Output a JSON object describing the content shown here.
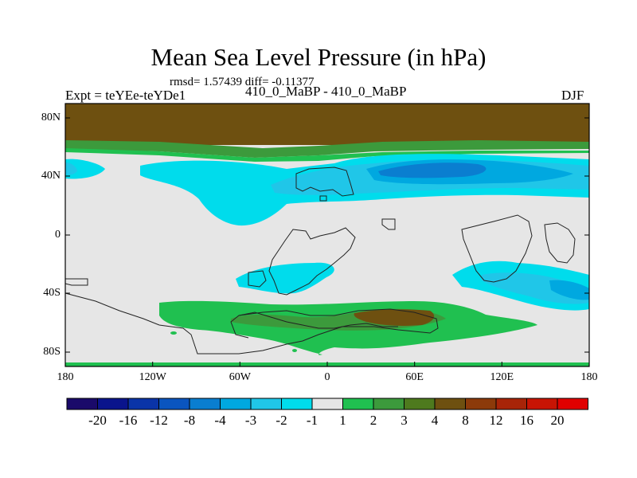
{
  "title": "Mean Sea Level Pressure (in hPa)",
  "stats": "rmsd= 1.57439 diff= -0.11377",
  "left_label": "Expt = teYEe-teYDe1",
  "center_label": "410_0_MaBP - 410_0_MaBP",
  "right_label": "DJF",
  "map": {
    "lat_ticks": [
      "80N",
      "40N",
      "0",
      "40S",
      "80S"
    ],
    "lon_ticks": [
      "180",
      "120W",
      "60W",
      "0",
      "60E",
      "120E",
      "180"
    ]
  },
  "colorbar": {
    "labels": [
      "-20",
      "-16",
      "-12",
      "-8",
      "-4",
      "-3",
      "-2",
      "-1",
      "1",
      "2",
      "3",
      "4",
      "8",
      "12",
      "16",
      "20"
    ],
    "colors": [
      "#1a0a6a",
      "#0a148c",
      "#0a34a8",
      "#0a55bf",
      "#0a7ed0",
      "#00a8e0",
      "#20c6e8",
      "#00dcec",
      "#e6e6e6",
      "#20c050",
      "#3c9a3c",
      "#4e7a1e",
      "#6e5010",
      "#8c3a0a",
      "#a82408",
      "#c81404",
      "#e00000"
    ]
  },
  "colors": {
    "background": "#e6e6e6",
    "brown": "#6e5010",
    "green": "#20c050",
    "darkgreen": "#3c9a3c",
    "cyan": "#00dcec",
    "lightblue": "#20c6e8",
    "blue": "#00a8e0",
    "darkblue": "#0a7ed0",
    "coast": "#222222"
  }
}
